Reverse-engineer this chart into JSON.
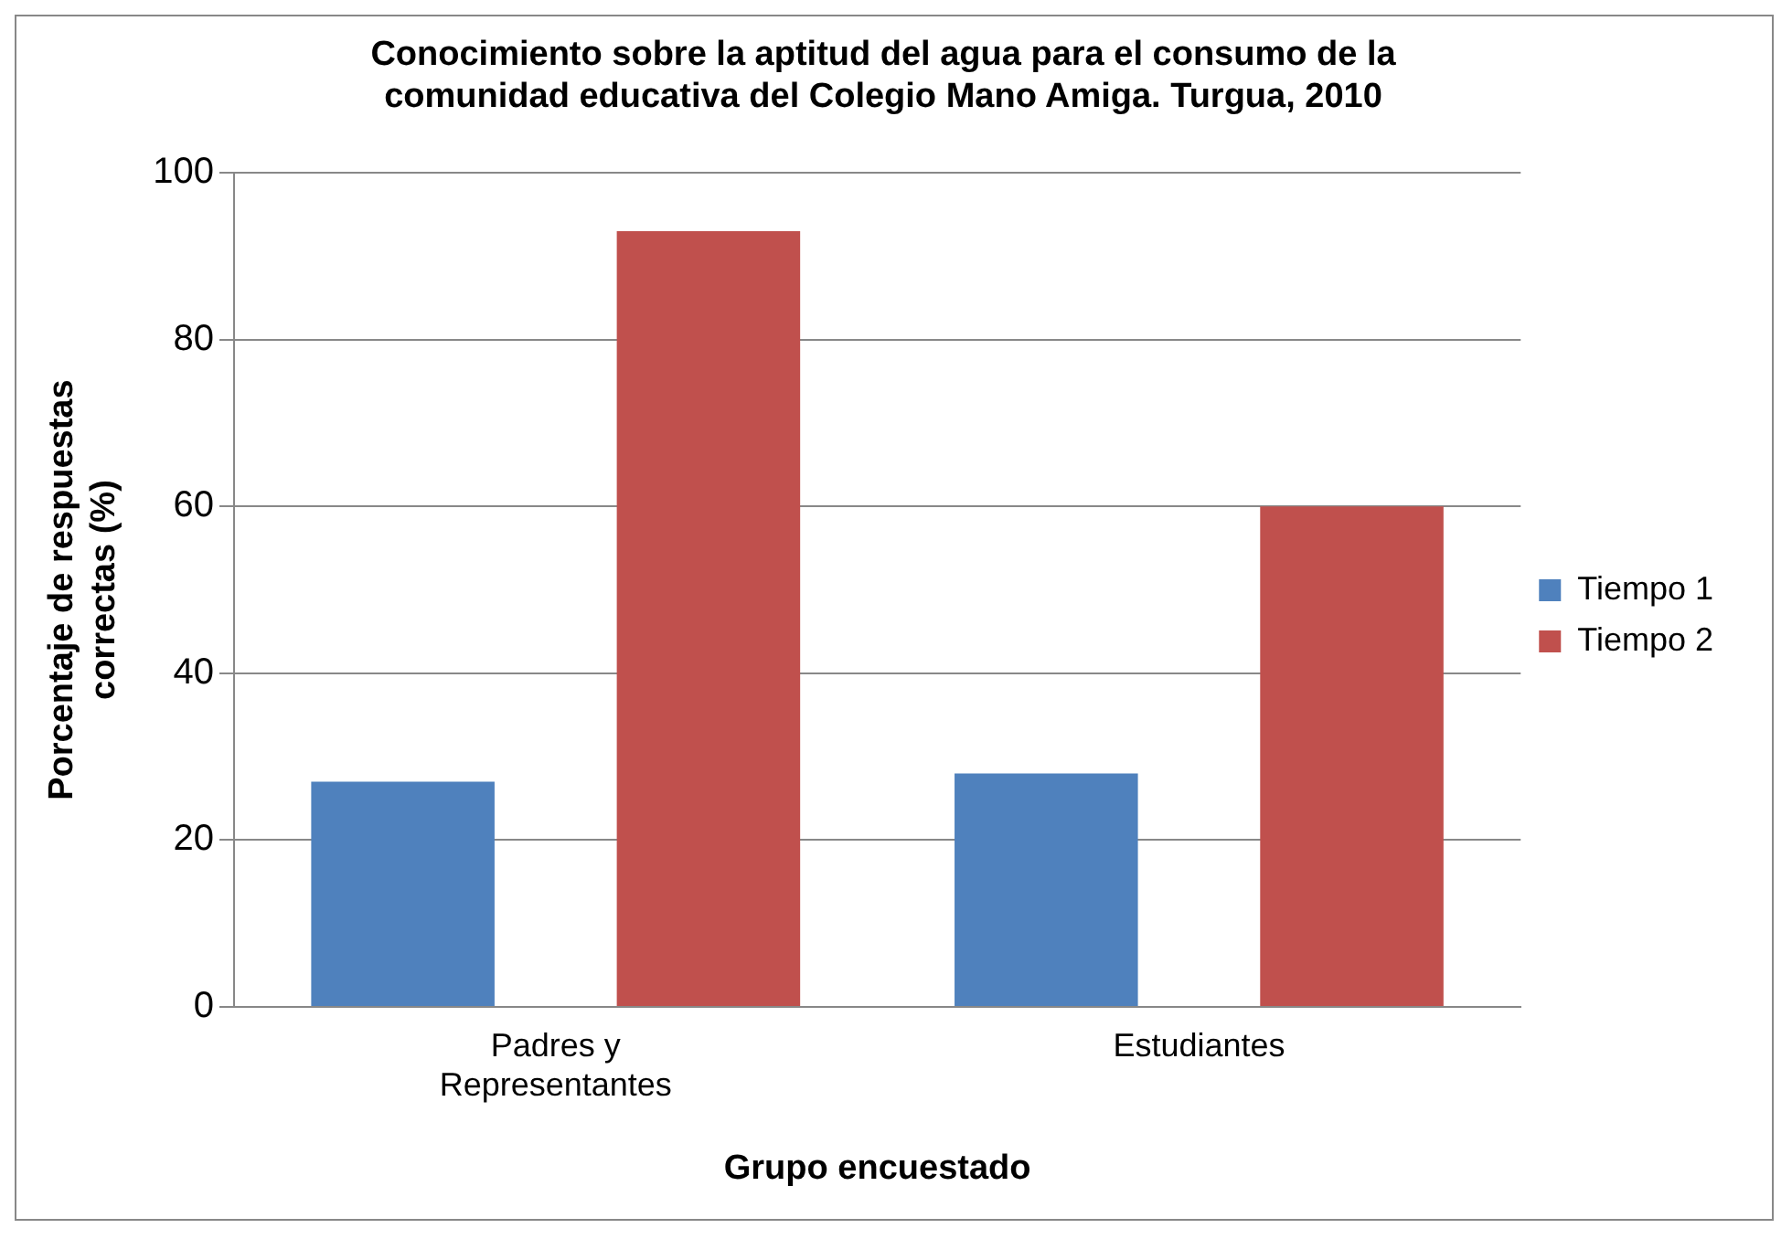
{
  "chart_data": {
    "type": "bar",
    "title": "Conocimiento sobre la aptitud del agua para el consumo de la comunidad educativa del Colegio Mano Amiga. Turgua, 2010",
    "xlabel": "Grupo encuestado",
    "ylabel": "Porcentaje de respuestas correctas (%)",
    "categories": [
      "Padres y Representantes",
      "Estudiantes"
    ],
    "series": [
      {
        "name": "Tiempo 1",
        "color": "#4f81bd",
        "values": [
          27,
          28
        ]
      },
      {
        "name": "Tiempo 2",
        "color": "#c0504d",
        "values": [
          93,
          60
        ]
      }
    ],
    "ylim": [
      0,
      100
    ],
    "yticks": [
      0,
      20,
      40,
      60,
      80,
      100
    ],
    "grid": "y",
    "legend": "right"
  }
}
